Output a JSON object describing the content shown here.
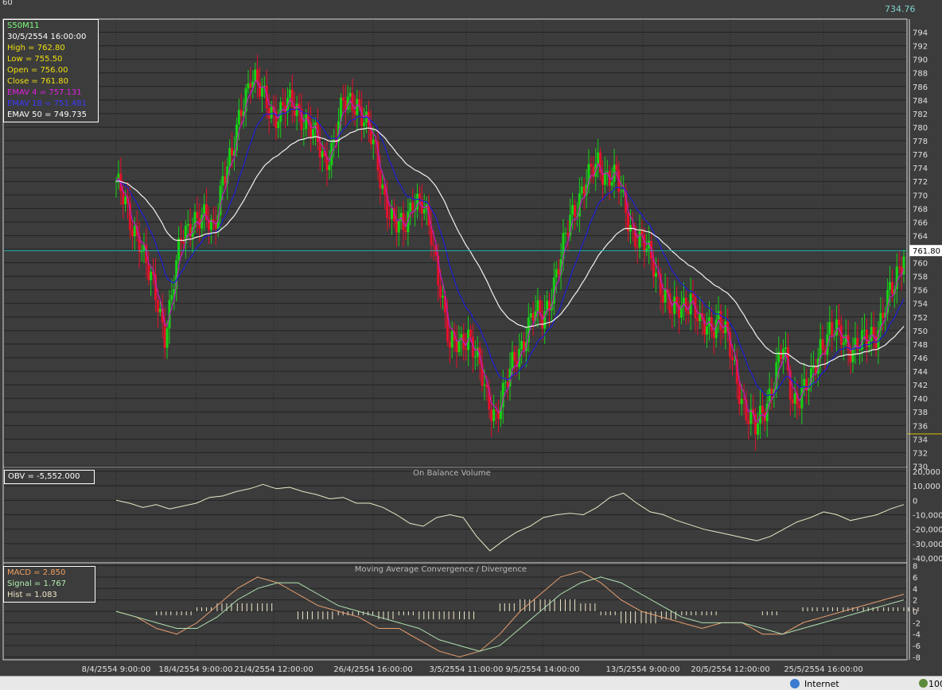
{
  "window": {
    "top_left_label": "60",
    "top_right_value": "734.76"
  },
  "colors": {
    "background": "#3c3c3c",
    "up": "#16d216",
    "down": "#e4102a",
    "ema4": "#c020c0",
    "ema18": "#1c1cd8",
    "ema50": "#f2f2f2",
    "grid": "#222222",
    "text": "#e0e0e0",
    "price_line": "#20b0b0"
  },
  "info_box": {
    "symbol": "S50M11",
    "datetime": "30/5/2554 16:00:00",
    "high": "High  = 762.80",
    "low": "Low   = 755.50",
    "open": "Open = 756.00",
    "close": "Close = 761.80",
    "ema4": "EMAV 4 = 757.131",
    "ema18": "EMAV 18 = 751.481",
    "ema50": "EMAV 50 = 749.735"
  },
  "obv_box": {
    "label": "OBV = -5,552.000"
  },
  "macd_box": {
    "macd": "MACD = 2.850",
    "signal": "Signal = 1.767",
    "hist": "Hist = 1.083"
  },
  "status": {
    "zone": "Internet",
    "zoom": "100"
  },
  "chart_data": [
    {
      "type": "candlestick",
      "title": "",
      "symbol": "S50M11",
      "ylim": [
        729,
        795
      ],
      "y_ticks": [
        730,
        732,
        734,
        736,
        738,
        740,
        742,
        744,
        746,
        748,
        750,
        752,
        754,
        756,
        758,
        760,
        762,
        764,
        766,
        768,
        770,
        772,
        774,
        776,
        778,
        780,
        782,
        784,
        786,
        788,
        790,
        792,
        794
      ],
      "current_price_label": "761.80",
      "x_tick_labels": [
        "8/4/2554 9:00:00",
        "18/4/2554 9:00:00",
        "21/4/2554 12:00:00",
        "26/4/2554 16:00:00",
        "3/5/2554 11:00:00",
        "9/5/2554 14:00:00",
        "13/5/2554 9:00:00",
        "20/5/2554 12:00:00",
        "25/5/2554 16:00:00"
      ],
      "close_keypoints": [
        [
          0,
          772
        ],
        [
          6,
          766
        ],
        [
          10,
          764
        ],
        [
          14,
          758
        ],
        [
          18,
          754
        ],
        [
          21,
          750
        ],
        [
          24,
          755
        ],
        [
          28,
          763
        ],
        [
          33,
          767
        ],
        [
          38,
          766
        ],
        [
          42,
          765
        ],
        [
          46,
          773
        ],
        [
          50,
          775
        ],
        [
          54,
          783
        ],
        [
          58,
          788
        ],
        [
          62,
          785
        ],
        [
          66,
          783
        ],
        [
          70,
          782
        ],
        [
          74,
          783
        ],
        [
          78,
          783
        ],
        [
          82,
          781
        ],
        [
          86,
          778
        ],
        [
          90,
          775
        ],
        [
          94,
          778
        ],
        [
          98,
          783
        ],
        [
          102,
          784
        ],
        [
          104,
          784
        ],
        [
          108,
          780
        ],
        [
          112,
          776
        ],
        [
          116,
          770
        ],
        [
          120,
          765
        ],
        [
          124,
          765
        ],
        [
          128,
          770
        ],
        [
          132,
          768
        ],
        [
          136,
          764
        ],
        [
          140,
          757
        ],
        [
          144,
          747
        ],
        [
          148,
          748
        ],
        [
          152,
          750
        ],
        [
          156,
          745
        ],
        [
          160,
          740
        ],
        [
          164,
          738
        ],
        [
          168,
          741
        ],
        [
          172,
          746
        ],
        [
          176,
          749
        ],
        [
          180,
          752
        ],
        [
          184,
          752
        ],
        [
          188,
          756
        ],
        [
          192,
          760
        ],
        [
          196,
          767
        ],
        [
          200,
          770
        ],
        [
          204,
          772
        ],
        [
          208,
          775
        ],
        [
          212,
          773
        ],
        [
          216,
          772
        ],
        [
          220,
          768
        ],
        [
          224,
          764
        ],
        [
          228,
          762
        ],
        [
          232,
          760
        ],
        [
          236,
          756
        ],
        [
          240,
          752
        ],
        [
          244,
          754
        ],
        [
          248,
          755
        ],
        [
          252,
          750
        ],
        [
          256,
          751
        ],
        [
          260,
          752
        ],
        [
          264,
          748
        ],
        [
          268,
          743
        ],
        [
          272,
          738
        ],
        [
          276,
          735
        ],
        [
          280,
          739
        ],
        [
          284,
          743
        ],
        [
          288,
          747
        ],
        [
          292,
          740
        ],
        [
          296,
          741
        ],
        [
          300,
          742
        ],
        [
          304,
          748
        ],
        [
          308,
          750
        ],
        [
          312,
          749
        ],
        [
          316,
          748
        ],
        [
          320,
          748
        ],
        [
          324,
          748
        ],
        [
          328,
          750
        ],
        [
          332,
          754
        ],
        [
          336,
          756
        ],
        [
          340,
          762
        ]
      ],
      "series": [
        {
          "name": "EMAV 4",
          "color": "#c020c0"
        },
        {
          "name": "EMAV 18",
          "color": "#1c1cd8"
        },
        {
          "name": "EMAV 50",
          "color": "#f2f2f2"
        }
      ]
    },
    {
      "type": "line",
      "title": "On Balance Volume",
      "ylim": [
        -40000,
        20000
      ],
      "y_ticks": [
        20000,
        10000,
        0,
        -10000,
        -20000,
        -30000,
        -40000
      ],
      "y_tick_labels": [
        "20,000",
        "10,000",
        "0",
        "-10,000",
        "-20,000",
        "-30,000",
        "-40,000"
      ],
      "series": [
        {
          "name": "OBV",
          "color": "#e8e8c8",
          "values": [
            0,
            -2000,
            -5000,
            -3000,
            -6000,
            -4000,
            -2000,
            2000,
            3000,
            6000,
            8000,
            11000,
            8000,
            9000,
            6000,
            4000,
            1000,
            2000,
            -2000,
            -2000,
            -5000,
            -10000,
            -16000,
            -18000,
            -12000,
            -10000,
            -12000,
            -25000,
            -35000,
            -28000,
            -22000,
            -18000,
            -12000,
            -10000,
            -9000,
            -10000,
            -5000,
            2000,
            5000,
            -2000,
            -8000,
            -10000,
            -14000,
            -17000,
            -20000,
            -22000,
            -24000,
            -26000,
            -28000,
            -25000,
            -20000,
            -15000,
            -12000,
            -8000,
            -10000,
            -14000,
            -12000,
            -10000,
            -6000,
            -3000
          ]
        }
      ]
    },
    {
      "type": "bar",
      "title": "Moving Average Convergence / Divergence",
      "ylim": [
        -8.5,
        8.5
      ],
      "y_ticks": [
        8,
        6,
        4,
        2,
        0,
        -2,
        -4,
        -6,
        -8
      ],
      "series": [
        {
          "name": "MACD",
          "color": "#e8a070",
          "values": [
            0,
            -1,
            -3,
            -4,
            -2,
            1,
            4,
            6,
            5,
            3,
            1,
            0,
            -1,
            -3,
            -3,
            -5,
            -7,
            -8,
            -7,
            -4,
            0,
            3,
            6,
            7,
            5,
            2,
            0,
            -1,
            -2,
            -3,
            -2,
            -2,
            -4,
            -4,
            -2,
            -1,
            0,
            1,
            2,
            3
          ]
        },
        {
          "name": "Signal",
          "color": "#b0e0b0",
          "values": [
            0,
            -1,
            -2,
            -3,
            -3,
            -1,
            2,
            4,
            5,
            5,
            3,
            1,
            0,
            -1,
            -2,
            -3,
            -5,
            -6,
            -7,
            -6,
            -3,
            0,
            3,
            5,
            6,
            5,
            3,
            1,
            -1,
            -2,
            -2,
            -2,
            -3,
            -4,
            -3,
            -2,
            -1,
            0,
            1,
            2
          ]
        },
        {
          "name": "Hist",
          "color": "#f0e6c8",
          "values": [
            0,
            0,
            -1,
            -1,
            1,
            2,
            2,
            2,
            0,
            -2,
            -2,
            -1,
            -1,
            -2,
            -1,
            -2,
            -2,
            -2,
            0,
            2,
            3,
            3,
            3,
            2,
            -1,
            -3,
            -3,
            -2,
            -1,
            -1,
            0,
            0,
            -1,
            0,
            1,
            1,
            1,
            1,
            1,
            1
          ]
        }
      ]
    }
  ]
}
